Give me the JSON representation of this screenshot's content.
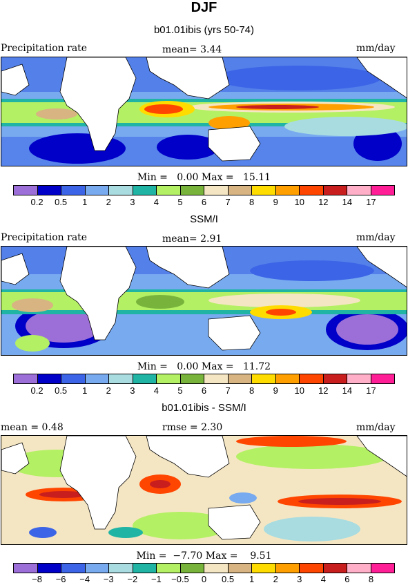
{
  "figure": {
    "title": "DJF",
    "panel1": {
      "subtitle": "b01.01ibis (yrs 50-74)",
      "left": "Precipitation rate",
      "center": "mean=   3.44",
      "right": "mm/day",
      "stats": "Min =   0.00 Max =   15.11"
    },
    "panel2": {
      "subtitle": "SSM/I",
      "left": "Precipitation rate",
      "center": "mean=   2.91",
      "right": "mm/day",
      "stats": "Min =   0.00 Max =   11.72"
    },
    "panel3": {
      "subtitle": "b01.01ibis - SSM/I",
      "left": "mean =    0.48",
      "center": "rmse =    2.30",
      "right": "mm/day",
      "stats": "Min =  −7.70 Max =    9.51"
    }
  },
  "colorbar_abs": {
    "colors": [
      "#9c6fd8",
      "#0000c8",
      "#3c64e6",
      "#78aaf0",
      "#a8dce0",
      "#20b4a4",
      "#b4f064",
      "#78b43c",
      "#f5e6c3",
      "#d7b482",
      "#ffdc00",
      "#ffa000",
      "#ff4600",
      "#c81e1e",
      "#ffafc8",
      "#ff1e96"
    ],
    "ticks": [
      "0.2",
      "0.5",
      "1",
      "2",
      "3",
      "4",
      "5",
      "6",
      "7",
      "8",
      "9",
      "10",
      "12",
      "14",
      "17"
    ]
  },
  "colorbar_diff": {
    "colors": [
      "#9c6fd8",
      "#0000c8",
      "#3c64e6",
      "#78aaf0",
      "#a8dce0",
      "#20b4a4",
      "#b4f064",
      "#78b43c",
      "#f5e6c3",
      "#d7b482",
      "#ffdc00",
      "#ffa000",
      "#ff4600",
      "#c81e1e",
      "#ffafc8",
      "#ff1e96"
    ],
    "ticks": [
      "−8",
      "−6",
      "−4",
      "−3",
      "−2",
      "−1",
      "−0.5",
      "0",
      "0.5",
      "1",
      "2",
      "3",
      "4",
      "6",
      "8"
    ]
  }
}
